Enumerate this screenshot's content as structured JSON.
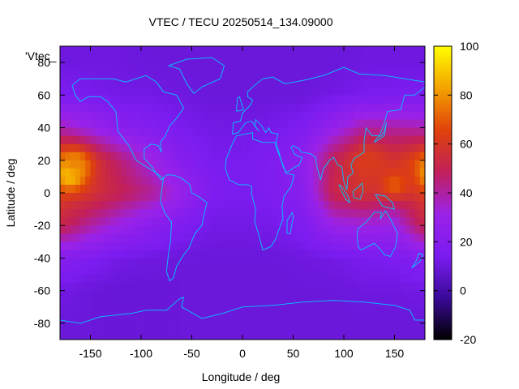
{
  "chart_data": {
    "type": "heatmap",
    "title": "VTEC / TECU 20250514_134.09000",
    "xlabel": "Longitude / deg",
    "ylabel": "Latitude / deg",
    "series_key": "'Vtec_",
    "xlim": [
      -180,
      180
    ],
    "ylim": [
      -90,
      90
    ],
    "x_ticks": [
      -150,
      -100,
      -50,
      0,
      50,
      100,
      150
    ],
    "y_ticks": [
      -80,
      -60,
      -40,
      -20,
      0,
      20,
      40,
      60,
      80
    ],
    "colorbar": {
      "range": [
        -20,
        100
      ],
      "ticks": [
        -20,
        0,
        20,
        40,
        60,
        80,
        100
      ],
      "palette": [
        "#000000",
        "#3b0a9a",
        "#7b1cf0",
        "#9b22e8",
        "#c2205a",
        "#e0420a",
        "#f3a200",
        "#ffff00"
      ]
    },
    "grid_longitudes": [
      -180,
      -150,
      -120,
      -90,
      -60,
      -30,
      0,
      30,
      60,
      90,
      120,
      150,
      180
    ],
    "grid_latitudes": [
      80,
      60,
      40,
      20,
      0,
      -20,
      -40,
      -60,
      -80
    ],
    "vtec_grid": [
      [
        11,
        11,
        11,
        10,
        10,
        10,
        10,
        10,
        10,
        10,
        11,
        11,
        11
      ],
      [
        15,
        14,
        12,
        12,
        11,
        10,
        10,
        10,
        10,
        12,
        14,
        15,
        15
      ],
      [
        38,
        30,
        22,
        18,
        14,
        12,
        12,
        13,
        16,
        28,
        40,
        40,
        38
      ],
      [
        68,
        60,
        45,
        32,
        20,
        14,
        14,
        16,
        25,
        50,
        62,
        58,
        68
      ],
      [
        62,
        58,
        50,
        42,
        30,
        16,
        14,
        16,
        22,
        52,
        58,
        50,
        62
      ],
      [
        52,
        40,
        30,
        22,
        16,
        12,
        12,
        13,
        16,
        30,
        32,
        30,
        52
      ],
      [
        20,
        16,
        12,
        11,
        10,
        10,
        10,
        10,
        11,
        12,
        14,
        15,
        20
      ],
      [
        12,
        10,
        9,
        9,
        10,
        10,
        10,
        10,
        10,
        10,
        11,
        11,
        12
      ],
      [
        10,
        10,
        10,
        10,
        10,
        10,
        10,
        10,
        10,
        10,
        10,
        10,
        10
      ]
    ],
    "hotspots": [
      {
        "lon": -170,
        "lat": 12,
        "vtec": 95
      },
      {
        "lon": -165,
        "lat": 18,
        "vtec": 78
      },
      {
        "lon": 150,
        "lat": 5,
        "vtec": 70
      },
      {
        "lon": 125,
        "lat": 20,
        "vtec": 62
      }
    ],
    "grid": false
  },
  "coastline_color": "#00c8ff"
}
